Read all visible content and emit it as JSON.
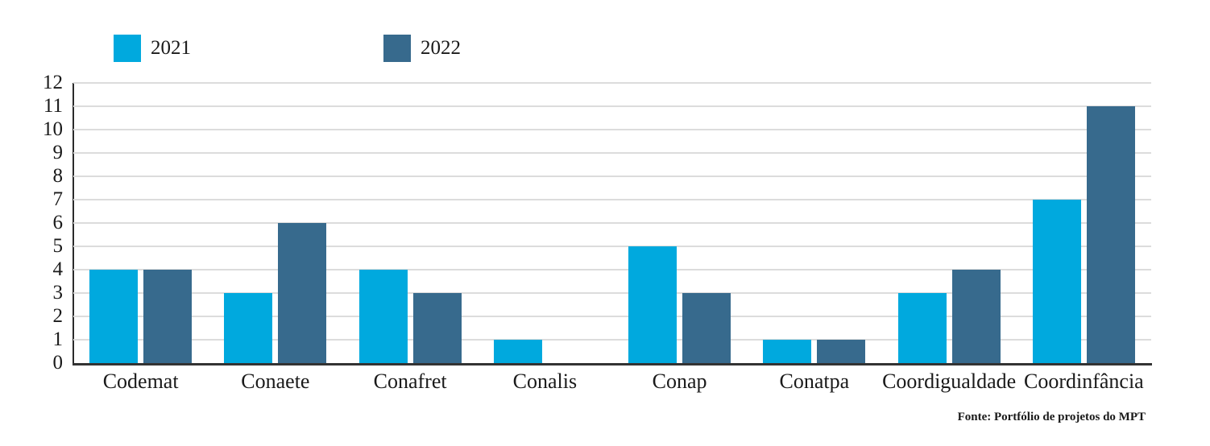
{
  "legend": [
    {
      "label": "2021",
      "color": "#00a9de"
    },
    {
      "label": "2022",
      "color": "#376a8d"
    }
  ],
  "source_note": "Fonte: Portfólio de projetos do MPT",
  "colors": {
    "series_2021": "#00a9de",
    "series_2022": "#376a8d",
    "gridline": "#dcdcdc",
    "axis": "#333333",
    "text": "#1a1a1a"
  },
  "chart_data": {
    "type": "bar",
    "categories": [
      "Codemat",
      "Conaete",
      "Conafret",
      "Conalis",
      "Conap",
      "Conatpa",
      "Coordigualdade",
      "Coordinfância"
    ],
    "series": [
      {
        "name": "2021",
        "color": "#00a9de",
        "values": [
          4,
          3,
          4,
          1,
          5,
          1,
          3,
          7
        ]
      },
      {
        "name": "2022",
        "color": "#376a8d",
        "values": [
          4,
          6,
          3,
          0,
          3,
          1,
          4,
          11
        ]
      }
    ],
    "ylim": [
      0,
      12
    ],
    "ytick_step": 1,
    "yticks": [
      0,
      1,
      2,
      3,
      4,
      5,
      6,
      7,
      8,
      9,
      10,
      11,
      12
    ],
    "grid": true,
    "legend_position": "top-left"
  }
}
